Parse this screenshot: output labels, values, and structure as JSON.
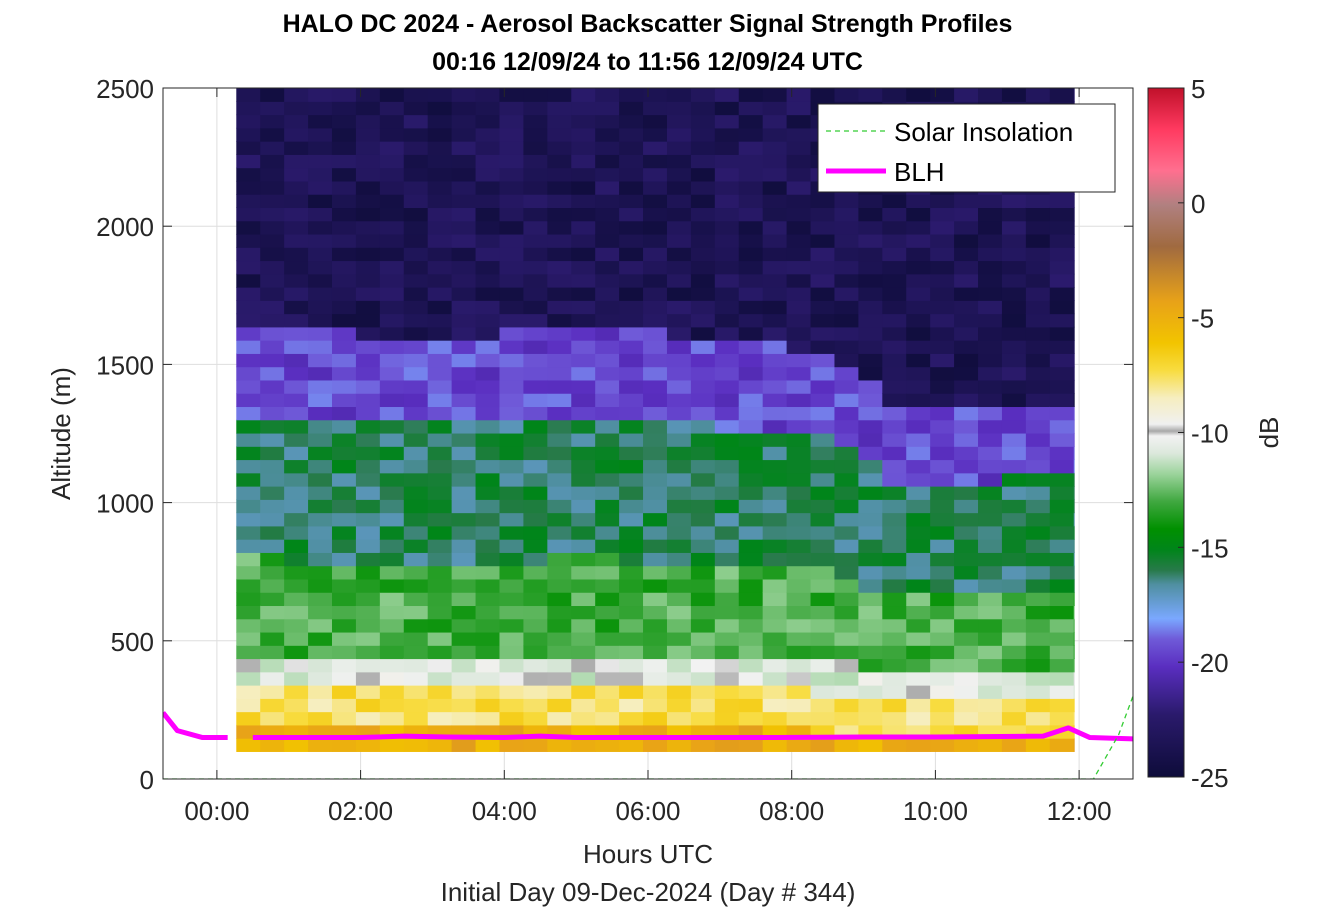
{
  "chart_data": {
    "type": "heatmap",
    "title": "HALO DC 2024 - Aerosol Backscatter Signal Strength Profiles",
    "subtitle": "00:16 12/09/24 to 11:56 12/09/24  UTC",
    "xlabel": "Hours UTC",
    "xlabel2": "Initial Day 09-Dec-2024 (Day # 344)",
    "ylabel": "Altitude (m)",
    "colorbar_label": "dB",
    "xlim": [
      -0.75,
      12.75
    ],
    "ylim": [
      0,
      2500
    ],
    "x_ticks": [
      0,
      2,
      4,
      6,
      8,
      10,
      12
    ],
    "x_tick_labels": [
      "00:00",
      "02:00",
      "04:00",
      "06:00",
      "08:00",
      "10:00",
      "12:00"
    ],
    "y_ticks": [
      0,
      500,
      1000,
      1500,
      2000,
      2500
    ],
    "y_tick_labels": [
      "0",
      "500",
      "1000",
      "1500",
      "2000",
      "2500"
    ],
    "clim": [
      -25,
      5
    ],
    "c_ticks": [
      -25,
      -20,
      -15,
      -10,
      -5,
      0,
      5
    ],
    "c_tick_labels": [
      "-25",
      "-20",
      "-15",
      "-10",
      "-5",
      "0",
      "5"
    ],
    "grid": true,
    "legend_position": "top-right",
    "legend": [
      "Solar Insolation",
      "BLH"
    ],
    "heatmap": {
      "x_start_hours": 0.27,
      "x_end_hours": 11.93,
      "dx_hours": 0.333,
      "y_start_m": 100,
      "y_end_m": 2500,
      "dy_m": 48,
      "profile_regimes_dB": [
        {
          "altitude_range_m": [
            100,
            180
          ],
          "value": -5,
          "note": "near-surface high signal"
        },
        {
          "altitude_range_m": [
            180,
            330
          ],
          "value": -7.5
        },
        {
          "altitude_range_m": [
            330,
            460
          ],
          "value": -10.5
        },
        {
          "altitude_range_m": [
            460,
            800
          ],
          "value": -13
        },
        {
          "altitude_range_m": [
            800,
            1300
          ],
          "value": -16
        },
        {
          "altitude_range_m": [
            1300,
            1630
          ],
          "value": -19.5
        },
        {
          "altitude_range_m": [
            1630,
            2500
          ],
          "value": -23.5
        }
      ],
      "cloud_top_m_by_hour": [
        [
          0.3,
          1630
        ],
        [
          3,
          1600
        ],
        [
          5,
          1630
        ],
        [
          7,
          1600
        ],
        [
          8.5,
          1550
        ],
        [
          9.5,
          1340
        ],
        [
          11.9,
          1370
        ]
      ]
    },
    "series": [
      {
        "name": "BLH",
        "color": "#ff00ff",
        "segments": [
          [
            [
              -0.75,
              240
            ],
            [
              -0.55,
              175
            ],
            [
              -0.2,
              150
            ],
            [
              0.15,
              150
            ]
          ],
          [
            [
              0.5,
              150
            ],
            [
              2.0,
              150
            ],
            [
              2.6,
              155
            ],
            [
              3.2,
              152
            ],
            [
              4.0,
              150
            ],
            [
              4.5,
              155
            ],
            [
              5.0,
              150
            ],
            [
              6.0,
              150
            ],
            [
              7.5,
              150
            ],
            [
              7.8,
              150
            ],
            [
              9.0,
              152
            ],
            [
              10.0,
              152
            ],
            [
              11.5,
              155
            ],
            [
              11.85,
              185
            ],
            [
              12.15,
              150
            ],
            [
              12.75,
              145
            ]
          ]
        ]
      },
      {
        "name": "Solar Insolation",
        "color": "#33cc33",
        "points": [
          [
            -0.75,
            0
          ],
          [
            12.2,
            0
          ],
          [
            12.55,
            160
          ],
          [
            12.75,
            300
          ]
        ]
      }
    ]
  },
  "colors": {
    "blh": "#ff00ff",
    "solar": "#33cc33"
  }
}
